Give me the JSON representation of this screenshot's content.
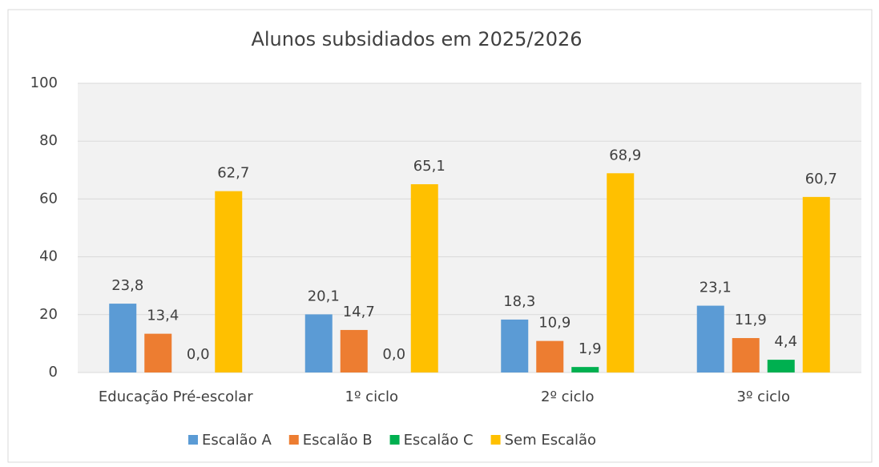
{
  "chart_data": {
    "type": "bar",
    "title": "Alunos subsidiados em 2025/2026",
    "categories": [
      "Educação Pré-escolar",
      "1º ciclo",
      "2º ciclo",
      "3º ciclo"
    ],
    "series": [
      {
        "name": "Escalão A",
        "color": "#5b9bd5",
        "values": [
          23.8,
          20.1,
          18.3,
          23.1
        ],
        "value_labels": [
          "23,8",
          "20,1",
          "18,3",
          "23,1"
        ]
      },
      {
        "name": "Escalão B",
        "color": "#ed7d31",
        "values": [
          13.4,
          14.7,
          10.9,
          11.9
        ],
        "value_labels": [
          "13,4",
          "14,7",
          "10,9",
          "11,9"
        ]
      },
      {
        "name": "Escalão C",
        "color": "#00b050",
        "values": [
          0.0,
          0.0,
          1.9,
          4.4
        ],
        "value_labels": [
          "0,0",
          "0,0",
          "1,9",
          "4,4"
        ]
      },
      {
        "name": "Sem Escalão",
        "color": "#ffc000",
        "values": [
          62.7,
          65.1,
          68.9,
          60.7
        ],
        "value_labels": [
          "62,7",
          "65,1",
          "68,9",
          "60,7"
        ]
      }
    ],
    "ylim": [
      0,
      100
    ],
    "yticks": [
      0,
      20,
      40,
      60,
      80,
      100
    ],
    "grid": true,
    "legend": "bottom"
  }
}
